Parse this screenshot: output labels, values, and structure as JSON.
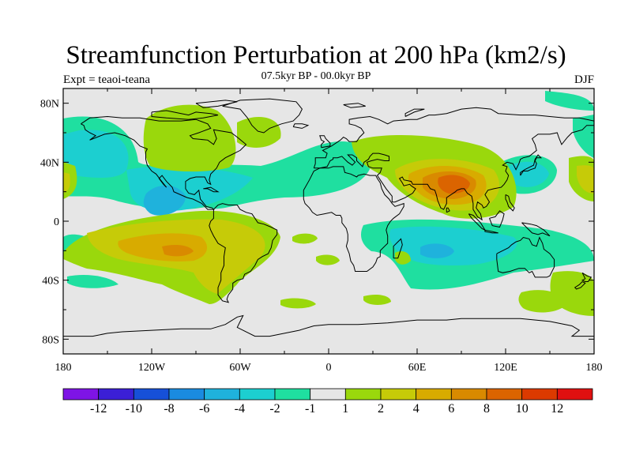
{
  "title": "Streamfunction Perturbation at 200 hPa (km2/s)",
  "subtitle": "07.5kyr BP - 00.0kyr BP",
  "experiment": "Expt = teaoi-teana",
  "season": "DJF",
  "map": {
    "projection": "cylindrical-equidistant",
    "lon_range": [
      -180,
      180
    ],
    "lat_range": [
      -90,
      90
    ],
    "lat_ticks": [
      "80N",
      "40N",
      "0",
      "40S",
      "80S"
    ],
    "lon_ticks": [
      "180",
      "120W",
      "60W",
      "0",
      "60E",
      "120E",
      "180"
    ],
    "background_color": "#e6e6e6",
    "coastline_color": "#000000"
  },
  "colorbar": {
    "colors": [
      "#7e14e6",
      "#3b1fd6",
      "#1650d8",
      "#1a8be0",
      "#1fb2dc",
      "#1ccfd0",
      "#1fdfa0",
      "#e6e6e6",
      "#9ad80c",
      "#c6cb08",
      "#d8ab00",
      "#d98a00",
      "#db6400",
      "#dc3a00",
      "#e01010"
    ],
    "labels": [
      "-12",
      "-10",
      "-8",
      "-6",
      "-4",
      "-2",
      "-1",
      "1",
      "2",
      "4",
      "6",
      "8",
      "10",
      "12"
    ]
  }
}
